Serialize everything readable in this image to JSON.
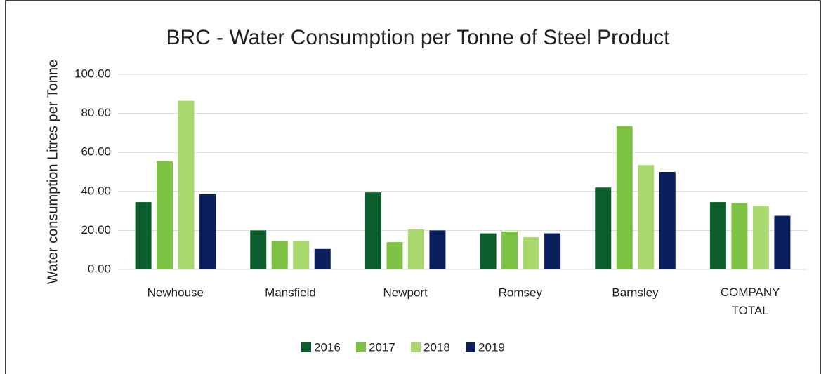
{
  "chart_data": {
    "type": "bar",
    "title": "BRC - Water Consumption per Tonne of Steel Product",
    "y_label": "Water consumption Litres per Tonne",
    "categories": [
      "Newhouse",
      "Mansfield",
      "Newport",
      "Romsey",
      "Barnsley",
      "COMPANY TOTAL"
    ],
    "series": [
      {
        "name": "2016",
        "color": "#0b5e2b",
        "values": [
          34.5,
          20,
          39.5,
          18.5,
          42,
          34.5
        ]
      },
      {
        "name": "2017",
        "color": "#7dc242",
        "values": [
          55.5,
          14.5,
          14,
          19.5,
          73.5,
          34
        ]
      },
      {
        "name": "2018",
        "color": "#a9d86e",
        "values": [
          86.5,
          14.5,
          20.5,
          16.5,
          53.5,
          32.5
        ]
      },
      {
        "name": "2019",
        "color": "#0a1f5c",
        "values": [
          38.5,
          10.5,
          20,
          18.5,
          50,
          27.5
        ]
      }
    ],
    "ylim": [
      0,
      100
    ],
    "yticks": [
      {
        "value": 0,
        "label": "0.00"
      },
      {
        "value": 20,
        "label": "20.00"
      },
      {
        "value": 40,
        "label": "40.00"
      },
      {
        "value": 60,
        "label": "60.00"
      },
      {
        "value": 80,
        "label": "80.00"
      },
      {
        "value": 100,
        "label": "100.00"
      }
    ],
    "grid": true,
    "legend": "bottom"
  }
}
